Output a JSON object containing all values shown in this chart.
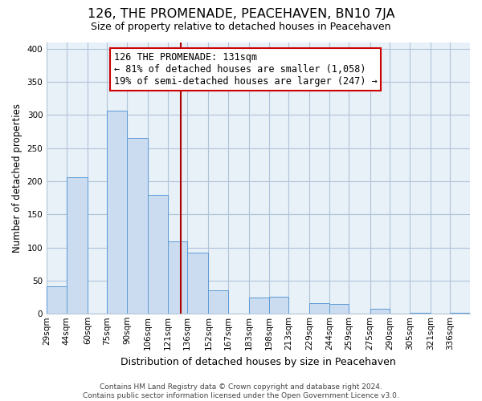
{
  "title": "126, THE PROMENADE, PEACEHAVEN, BN10 7JA",
  "subtitle": "Size of property relative to detached houses in Peacehaven",
  "xlabel": "Distribution of detached houses by size in Peacehaven",
  "ylabel": "Number of detached properties",
  "footer_line1": "Contains HM Land Registry data © Crown copyright and database right 2024.",
  "footer_line2": "Contains public sector information licensed under the Open Government Licence v3.0.",
  "bin_labels": [
    "29sqm",
    "44sqm",
    "60sqm",
    "75sqm",
    "90sqm",
    "106sqm",
    "121sqm",
    "136sqm",
    "152sqm",
    "167sqm",
    "183sqm",
    "198sqm",
    "213sqm",
    "229sqm",
    "244sqm",
    "259sqm",
    "275sqm",
    "290sqm",
    "305sqm",
    "321sqm",
    "336sqm"
  ],
  "actual_heights": [
    42,
    206,
    0,
    307,
    265,
    179,
    109,
    92,
    36,
    0,
    24,
    26,
    0,
    16,
    15,
    0,
    7,
    0,
    2,
    0,
    2
  ],
  "bin_edges": [
    29,
    44,
    60,
    75,
    90,
    106,
    121,
    136,
    152,
    167,
    183,
    198,
    213,
    229,
    244,
    259,
    275,
    290,
    305,
    321,
    336,
    351
  ],
  "bar_color": "#ccdcf0",
  "bar_edge_color": "#5b9bd5",
  "plot_bg_color": "#e8f0f8",
  "vline_x": 131,
  "vline_color": "#aa0000",
  "annotation_title": "126 THE PROMENADE: 131sqm",
  "annotation_line2": "← 81% of detached houses are smaller (1,058)",
  "annotation_line3": "19% of semi-detached houses are larger (247) →",
  "annotation_box_color": "#ffffff",
  "annotation_box_edge": "#cc0000",
  "ylim": [
    0,
    410
  ],
  "yticks": [
    0,
    50,
    100,
    150,
    200,
    250,
    300,
    350,
    400
  ],
  "background_color": "#ffffff",
  "grid_color": "#b0c4d8",
  "title_fontsize": 11.5,
  "subtitle_fontsize": 9,
  "xlabel_fontsize": 9,
  "ylabel_fontsize": 8.5,
  "tick_fontsize": 7.5,
  "annotation_fontsize": 8.5,
  "footer_fontsize": 6.5
}
